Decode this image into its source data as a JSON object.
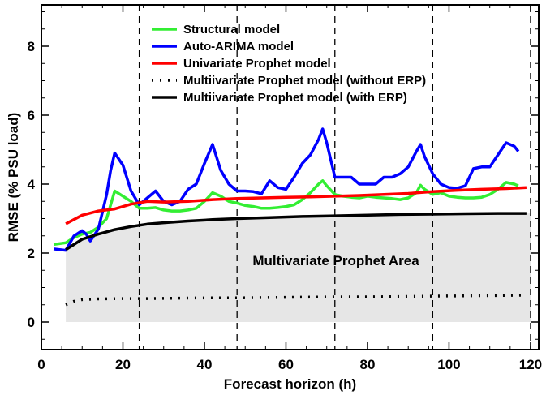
{
  "chart_data": {
    "type": "line",
    "xlabel": "Forecast horizon (h)",
    "ylabel": "RMSE (% PSU load)",
    "xlim": [
      0,
      122
    ],
    "ylim": [
      -0.8,
      9.2
    ],
    "xticks": [
      0,
      20,
      40,
      60,
      80,
      100,
      120
    ],
    "yticks": [
      0,
      2,
      4,
      6,
      8
    ],
    "grid": false,
    "legend_position": "top",
    "vlines": [
      24,
      48,
      72,
      96,
      120
    ],
    "annotation": "Multivariate Prophet Area",
    "series": [
      {
        "name": "Structural model",
        "color": "#33ee33",
        "style": "solid",
        "x": [
          3,
          6,
          8,
          10,
          12,
          14,
          16,
          18,
          20,
          22,
          24,
          26,
          28,
          30,
          32,
          34,
          36,
          38,
          40,
          42,
          44,
          46,
          48,
          50,
          52,
          54,
          56,
          58,
          60,
          62,
          64,
          66,
          68,
          69,
          70,
          72,
          74,
          76,
          78,
          80,
          82,
          84,
          86,
          88,
          90,
          92,
          93,
          94,
          96,
          98,
          100,
          102,
          104,
          106,
          108,
          110,
          112,
          114,
          116,
          117
        ],
        "y": [
          2.25,
          2.3,
          2.45,
          2.55,
          2.6,
          2.75,
          3.0,
          3.8,
          3.65,
          3.5,
          3.3,
          3.3,
          3.32,
          3.25,
          3.22,
          3.22,
          3.25,
          3.3,
          3.5,
          3.75,
          3.65,
          3.5,
          3.45,
          3.38,
          3.35,
          3.3,
          3.3,
          3.32,
          3.35,
          3.4,
          3.55,
          3.75,
          4.0,
          4.1,
          3.95,
          3.7,
          3.65,
          3.62,
          3.6,
          3.65,
          3.62,
          3.6,
          3.58,
          3.55,
          3.6,
          3.75,
          3.97,
          3.85,
          3.7,
          3.75,
          3.65,
          3.62,
          3.6,
          3.6,
          3.62,
          3.7,
          3.85,
          4.05,
          4.0,
          3.95
        ]
      },
      {
        "name": "Auto-ARIMA model",
        "color": "#0000ff",
        "style": "solid",
        "x": [
          3,
          6,
          8,
          10,
          11,
          12,
          14,
          16,
          17,
          18,
          20,
          22,
          24,
          26,
          28,
          30,
          32,
          34,
          36,
          38,
          40,
          42,
          44,
          46,
          48,
          50,
          52,
          54,
          56,
          58,
          60,
          62,
          64,
          66,
          68,
          69,
          70,
          72,
          74,
          76,
          78,
          80,
          82,
          84,
          86,
          88,
          90,
          92,
          93,
          94,
          96,
          98,
          100,
          102,
          104,
          106,
          108,
          110,
          112,
          114,
          116,
          117
        ],
        "y": [
          2.12,
          2.08,
          2.5,
          2.65,
          2.55,
          2.35,
          2.7,
          3.7,
          4.4,
          4.9,
          4.55,
          3.8,
          3.4,
          3.6,
          3.8,
          3.5,
          3.4,
          3.5,
          3.85,
          4.0,
          4.6,
          5.15,
          4.4,
          4.0,
          3.8,
          3.8,
          3.78,
          3.72,
          4.1,
          3.9,
          3.85,
          4.2,
          4.6,
          4.85,
          5.3,
          5.6,
          5.2,
          4.2,
          4.2,
          4.2,
          4.0,
          4.0,
          4.0,
          4.2,
          4.2,
          4.3,
          4.5,
          4.95,
          5.15,
          4.8,
          4.3,
          4.0,
          3.9,
          3.88,
          3.95,
          4.45,
          4.5,
          4.5,
          4.85,
          5.2,
          5.1,
          4.95
        ]
      },
      {
        "name": "Univariate Prophet model",
        "color": "#ff0000",
        "style": "solid",
        "x": [
          6,
          10,
          14,
          18,
          22,
          26,
          30,
          36,
          42,
          48,
          54,
          60,
          66,
          72,
          78,
          84,
          90,
          96,
          102,
          108,
          114,
          119
        ],
        "y": [
          2.85,
          3.1,
          3.22,
          3.28,
          3.42,
          3.5,
          3.48,
          3.5,
          3.55,
          3.58,
          3.6,
          3.62,
          3.63,
          3.65,
          3.67,
          3.7,
          3.73,
          3.78,
          3.82,
          3.85,
          3.87,
          3.9
        ]
      },
      {
        "name": "Multiivariate Prophet model (without ERP)",
        "color": "#000000",
        "style": "dotted",
        "x": [
          6,
          8,
          10,
          14,
          20,
          26,
          32,
          40,
          48,
          56,
          64,
          72,
          80,
          88,
          96,
          104,
          112,
          119
        ],
        "y": [
          0.5,
          0.6,
          0.65,
          0.67,
          0.68,
          0.68,
          0.69,
          0.7,
          0.7,
          0.71,
          0.72,
          0.73,
          0.73,
          0.74,
          0.75,
          0.76,
          0.77,
          0.78
        ]
      },
      {
        "name": "Multiivariate Prophet model (with ERP)",
        "color": "#000000",
        "style": "solid",
        "x": [
          6,
          8,
          10,
          14,
          18,
          22,
          26,
          30,
          36,
          42,
          48,
          56,
          64,
          72,
          80,
          88,
          96,
          104,
          112,
          119
        ],
        "y": [
          2.1,
          2.25,
          2.4,
          2.55,
          2.68,
          2.77,
          2.84,
          2.88,
          2.93,
          2.97,
          3.0,
          3.03,
          3.06,
          3.08,
          3.1,
          3.12,
          3.13,
          3.14,
          3.15,
          3.15
        ]
      }
    ]
  }
}
